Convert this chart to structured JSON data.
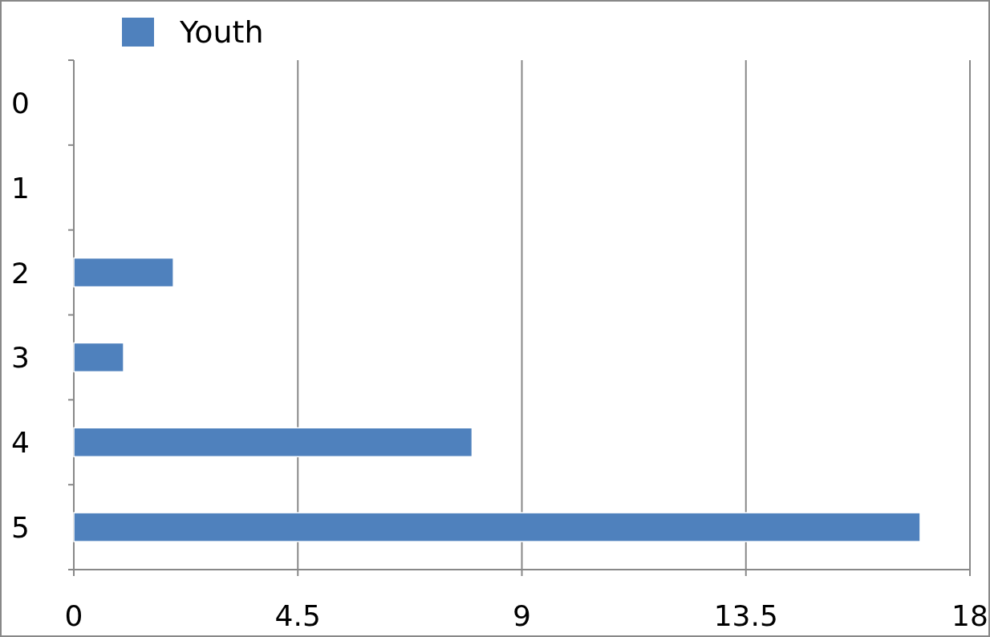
{
  "chart_data": {
    "type": "bar",
    "orientation": "horizontal",
    "categories": [
      "0",
      "1",
      "2",
      "3",
      "4",
      "5"
    ],
    "series": [
      {
        "name": "Youth",
        "color": "#4f81bd",
        "values": [
          0,
          0,
          2,
          1,
          8,
          17
        ]
      }
    ],
    "xlim": [
      0,
      18
    ],
    "xticks": [
      0,
      4.5,
      9,
      13.5,
      18
    ],
    "grid": "x",
    "legend": "top left"
  }
}
